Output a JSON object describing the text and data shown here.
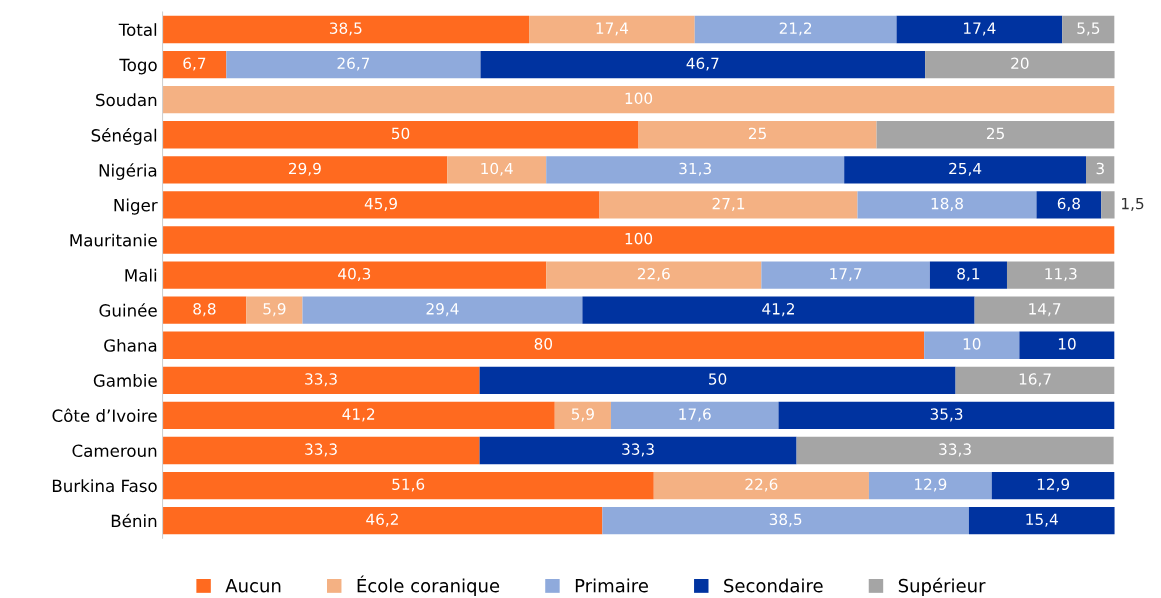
{
  "chart_data": {
    "type": "bar",
    "orientation": "horizontal",
    "stacked": true,
    "categories": [
      "Total",
      "Togo",
      "Soudan",
      "Sénégal",
      "Nigéria",
      "Niger",
      "Mauritanie",
      "Mali",
      "Guinée",
      "Ghana",
      "Gambie",
      "Côte d’Ivoire",
      "Cameroun",
      "Burkina Faso",
      "Bénin"
    ],
    "xlim": [
      0,
      100
    ],
    "tick_labels": "y",
    "grid": false,
    "legend": "bottom",
    "series": [
      {
        "name": "Aucun",
        "color": "#ff6a1f",
        "values": [
          38.5,
          6.7,
          null,
          50,
          29.9,
          45.9,
          100,
          40.3,
          8.8,
          80,
          33.3,
          41.2,
          33.3,
          51.6,
          46.2
        ],
        "value_labels": [
          "38,5",
          "6,7",
          null,
          "50",
          "29,9",
          "45,9",
          "100",
          "40,3",
          "8,8",
          "80",
          "33,3",
          "41,2",
          "33,3",
          "51,6",
          "46,2"
        ]
      },
      {
        "name": "École coranique",
        "color": "#f4b183",
        "values": [
          17.4,
          null,
          100,
          25,
          10.4,
          27.1,
          null,
          22.6,
          5.9,
          null,
          null,
          5.9,
          null,
          22.6,
          null
        ],
        "value_labels": [
          "17,4",
          null,
          "100",
          "25",
          "10,4",
          "27,1",
          null,
          "22,6",
          "5,9",
          null,
          null,
          "5,9",
          null,
          "22,6",
          null
        ]
      },
      {
        "name": "Primaire",
        "color": "#8faadc",
        "values": [
          21.2,
          26.7,
          null,
          null,
          31.3,
          18.8,
          null,
          17.7,
          29.4,
          10,
          null,
          17.6,
          null,
          12.9,
          38.5
        ],
        "value_labels": [
          "21,2",
          "26,7",
          null,
          null,
          "31,3",
          "18,8",
          null,
          "17,7",
          "29,4",
          "10",
          null,
          "17,6",
          null,
          "12,9",
          "38,5"
        ]
      },
      {
        "name": "Secondaire",
        "color": "#0033a0",
        "values": [
          17.4,
          46.7,
          null,
          null,
          25.4,
          6.8,
          null,
          8.1,
          41.2,
          10,
          50,
          35.3,
          33.3,
          12.9,
          15.4
        ],
        "value_labels": [
          "17,4",
          "46,7",
          null,
          null,
          "25,4",
          "6,8",
          null,
          "8,1",
          "41,2",
          "10",
          "50",
          "35,3",
          "33,3",
          "12,9",
          "15,4"
        ]
      },
      {
        "name": "Supérieur",
        "color": "#a5a5a5",
        "values": [
          5.5,
          20,
          null,
          25,
          3,
          1.5,
          null,
          11.3,
          14.7,
          null,
          16.7,
          null,
          33.3,
          null,
          null
        ],
        "value_labels": [
          "5,5",
          "20",
          null,
          "25",
          "3",
          "1,5",
          null,
          "11,3",
          "14,7",
          null,
          "16,7",
          null,
          "33,3",
          null,
          null
        ]
      }
    ]
  }
}
